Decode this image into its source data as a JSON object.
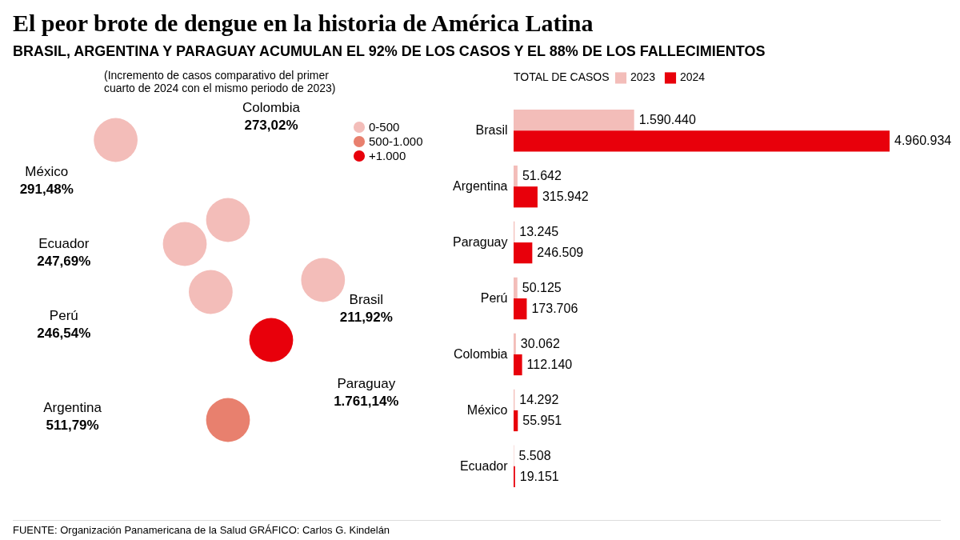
{
  "chart_data": [
    {
      "type": "other",
      "title": "El peor brote de dengue en la historia de América Latina",
      "subtitle": "BRASIL, ARGENTINA Y PARAGUAY ACUMULAN EL 92% DE LOS CASOS Y EL 88% DE LOS FALLECIMIENTOS",
      "categories": [
        "México",
        "Colombia",
        "Ecuador",
        "Perú",
        "Brasil",
        "Paraguay",
        "Argentina"
      ],
      "legend": "top right",
      "series": [
        {
          "name": "0-500",
          "color": "#f3bdb9",
          "values": [
            291.48,
            273.02,
            247.69,
            246.54,
            211.92,
            null,
            null
          ],
          "value_labels": [
            "291,48%",
            "273,02%",
            "247,69%",
            "246,54%",
            "211,92%",
            null,
            null
          ]
        },
        {
          "name": "500-1.000",
          "color": "#e8806e",
          "values": [
            null,
            null,
            null,
            null,
            null,
            null,
            511.79
          ],
          "value_labels": [
            null,
            null,
            null,
            null,
            null,
            null,
            "511,79%"
          ]
        },
        {
          "name": "+1.000",
          "color": "#e8000b",
          "values": [
            null,
            null,
            null,
            null,
            null,
            1761.14,
            null
          ],
          "value_labels": [
            null,
            null,
            null,
            null,
            null,
            "1.761,14%",
            null
          ]
        }
      ],
      "annotations": [
        "(Incremento de casos comparativo del primer cuarto de 2024 con el mismo periodo de 2023)",
        "FUENTE: Organización Panamericana de la Salud   GRÁFICO: Carlos G. Kindelán"
      ]
    },
    {
      "type": "bar",
      "orientation": "horizontal",
      "legend": "top",
      "legend_title": "TOTAL DE CASOS",
      "categories": [
        "Brasil",
        "Argentina",
        "Paraguay",
        "Perú",
        "Colombia",
        "México",
        "Ecuador"
      ],
      "series": [
        {
          "name": "2023",
          "color": "#f3bdb9",
          "values": [
            1590440,
            51642,
            13245,
            50125,
            30062,
            14292,
            5508
          ],
          "value_labels": [
            "1.590.440",
            "51.642",
            "13.245",
            "50.125",
            "30.062",
            "14.292",
            "5.508"
          ]
        },
        {
          "name": "2024",
          "color": "#e8000b",
          "values": [
            4960934,
            315942,
            246509,
            173706,
            112140,
            55951,
            19151
          ],
          "value_labels": [
            "4.960.934",
            "315.942",
            "246.509",
            "173.706",
            "112.140",
            "55.951",
            "19.151"
          ]
        }
      ]
    }
  ]
}
